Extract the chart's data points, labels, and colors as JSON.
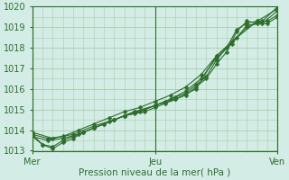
{
  "xlabel": "Pression niveau de la mer( hPa )",
  "bg_color": "#d4ece6",
  "plot_bg_color": "#d4ece6",
  "grid_color": "#aaccaa",
  "line_color": "#2d6e2d",
  "marker_color": "#2d6e2d",
  "ylim": [
    1013,
    1020
  ],
  "yticks": [
    1013,
    1014,
    1015,
    1016,
    1017,
    1018,
    1019,
    1020
  ],
  "xlim": [
    0,
    96
  ],
  "xticks": [
    0,
    48,
    96
  ],
  "xticklabels": [
    "Mer",
    "Jeu",
    "Ven"
  ],
  "lines": [
    {
      "x": [
        0,
        4,
        8,
        12,
        16,
        20,
        24,
        28,
        32,
        36,
        40,
        44,
        48,
        52,
        56,
        60,
        64,
        68,
        72,
        76,
        80,
        84,
        88,
        92,
        96
      ],
      "y": [
        1013.7,
        1013.3,
        1013.2,
        1013.5,
        1013.7,
        1013.9,
        1014.1,
        1014.3,
        1014.5,
        1014.7,
        1014.8,
        1014.9,
        1015.1,
        1015.3,
        1015.5,
        1015.7,
        1016.1,
        1016.5,
        1017.2,
        1017.8,
        1018.8,
        1019.3,
        1019.2,
        1019.2,
        1019.5
      ]
    },
    {
      "x": [
        0,
        4,
        8,
        12,
        16,
        20,
        24,
        28,
        32,
        36,
        40,
        44,
        48,
        52,
        56,
        60,
        64,
        68,
        72,
        76,
        80,
        84,
        88,
        92,
        96
      ],
      "y": [
        1013.8,
        1013.3,
        1013.1,
        1013.4,
        1013.6,
        1013.9,
        1014.1,
        1014.3,
        1014.5,
        1014.7,
        1014.9,
        1015.0,
        1015.2,
        1015.4,
        1015.6,
        1015.8,
        1016.2,
        1016.6,
        1017.4,
        1018.0,
        1018.9,
        1019.2,
        1019.3,
        1019.3,
        1019.6
      ]
    },
    {
      "x": [
        0,
        6,
        12,
        18,
        24,
        30,
        36,
        42,
        48,
        54,
        60,
        66,
        72,
        78,
        84,
        90,
        96
      ],
      "y": [
        1013.7,
        1013.5,
        1013.6,
        1013.8,
        1014.1,
        1014.4,
        1014.7,
        1014.9,
        1015.2,
        1015.5,
        1015.9,
        1016.5,
        1017.5,
        1018.2,
        1019.1,
        1019.2,
        1019.8
      ]
    },
    {
      "x": [
        0,
        6,
        12,
        18,
        24,
        30,
        36,
        42,
        48,
        54,
        60,
        66,
        72,
        78,
        84,
        90,
        96
      ],
      "y": [
        1013.8,
        1013.6,
        1013.7,
        1014.0,
        1014.3,
        1014.6,
        1014.9,
        1015.1,
        1015.4,
        1015.7,
        1016.1,
        1016.7,
        1017.6,
        1018.3,
        1019.0,
        1019.3,
        1020.0
      ]
    },
    {
      "x": [
        0,
        8,
        16,
        24,
        32,
        40,
        48,
        56,
        64,
        72,
        80,
        88,
        96
      ],
      "y": [
        1013.9,
        1013.6,
        1013.8,
        1014.2,
        1014.5,
        1014.9,
        1015.2,
        1015.5,
        1016.0,
        1017.6,
        1018.5,
        1019.3,
        1019.9
      ]
    }
  ]
}
